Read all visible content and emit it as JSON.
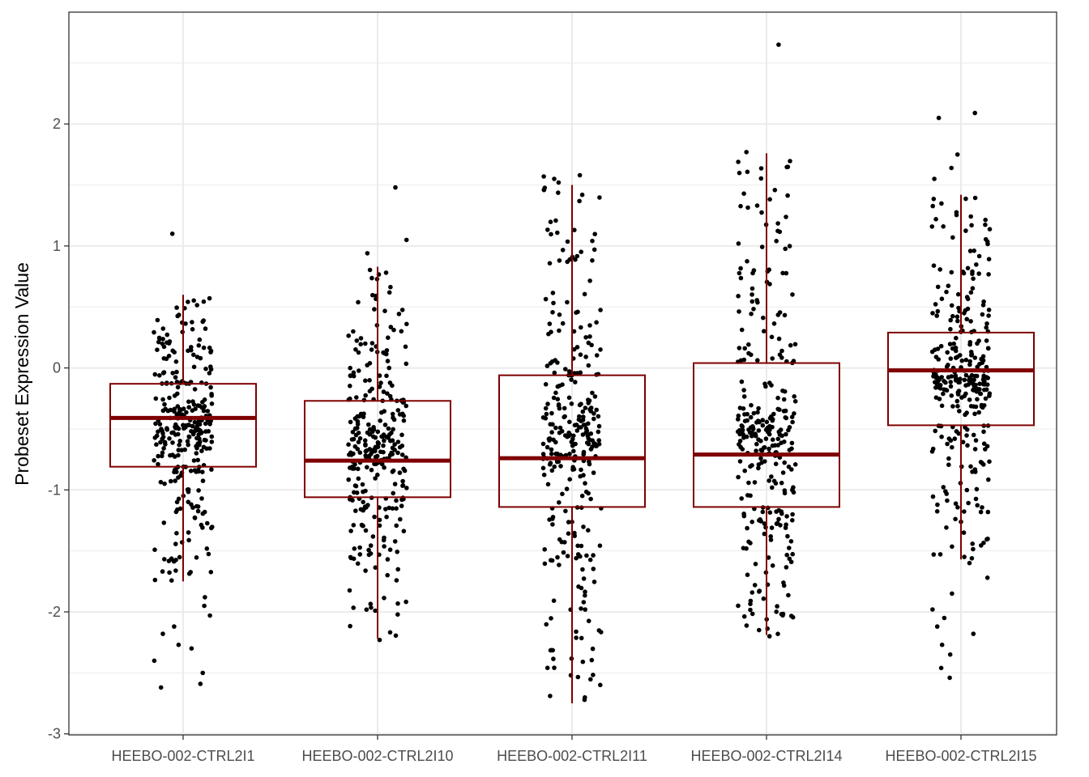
{
  "chart_data": {
    "type": "box",
    "title": "",
    "xlabel": "",
    "ylabel": "Probeset Expression Value",
    "ylim": [
      -3.0,
      2.9
    ],
    "yticks": [
      -3,
      -2,
      -1,
      0,
      1,
      2
    ],
    "ytick_labels": [
      "-3",
      "-2",
      "-1",
      "0",
      "1",
      "2"
    ],
    "grid": true,
    "legend": "none",
    "colors": {
      "box": "#7f0000",
      "points": "#000000",
      "grid": "#ebebeb",
      "panel_border": "#333333",
      "background": "#ffffff"
    },
    "categories": [
      "HEEBO-002-CTRL2I1",
      "HEEBO-002-CTRL2I10",
      "HEEBO-002-CTRL2I11",
      "HEEBO-002-CTRL2I14",
      "HEEBO-002-CTRL2I15"
    ],
    "boxes": [
      {
        "category": "HEEBO-002-CTRL2I1",
        "whisker_low": -1.75,
        "q1": -0.81,
        "median": -0.41,
        "q3": -0.13,
        "whisker_high": 0.6
      },
      {
        "category": "HEEBO-002-CTRL2I10",
        "whisker_low": -2.22,
        "q1": -1.06,
        "median": -0.76,
        "q3": -0.27,
        "whisker_high": 0.83
      },
      {
        "category": "HEEBO-002-CTRL2I11",
        "whisker_low": -2.75,
        "q1": -1.14,
        "median": -0.74,
        "q3": -0.06,
        "whisker_high": 1.5
      },
      {
        "category": "HEEBO-002-CTRL2I14",
        "whisker_low": -2.19,
        "q1": -1.14,
        "median": -0.71,
        "q3": 0.04,
        "whisker_high": 1.76
      },
      {
        "category": "HEEBO-002-CTRL2I15",
        "whisker_low": -1.57,
        "q1": -0.47,
        "median": -0.02,
        "q3": 0.29,
        "whisker_high": 1.42
      }
    ],
    "points_per_group": 300,
    "outliers": [
      {
        "category": "HEEBO-002-CTRL2I1",
        "values": [
          1.1,
          -2.03,
          -2.27,
          -2.4,
          -2.5,
          -2.59,
          -2.62,
          -1.88,
          -1.95,
          -2.12,
          -2.18,
          -2.3
        ]
      },
      {
        "category": "HEEBO-002-CTRL2I10",
        "values": [
          1.48,
          1.05,
          0.94,
          -2.23
        ]
      },
      {
        "category": "HEEBO-002-CTRL2I11",
        "values": [
          1.58,
          1.57,
          1.55,
          1.52
        ]
      },
      {
        "category": "HEEBO-002-CTRL2I14",
        "values": [
          2.65,
          1.77,
          -2.2
        ]
      },
      {
        "category": "HEEBO-002-CTRL2I15",
        "values": [
          2.09,
          2.05,
          1.75,
          1.64,
          1.55,
          -1.6,
          -1.72,
          -1.85,
          -1.98,
          -2.05,
          -2.12,
          -2.18,
          -2.27,
          -2.35,
          -2.46,
          -2.54
        ]
      }
    ]
  }
}
